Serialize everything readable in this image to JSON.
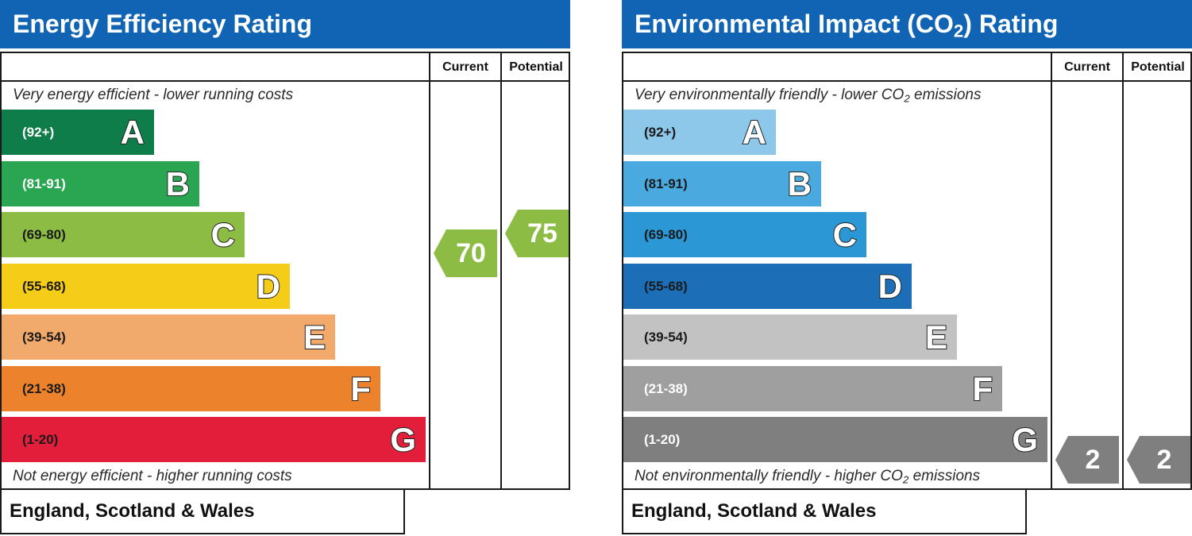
{
  "energy": {
    "title": "Energy Efficiency Rating",
    "col_current": "Current",
    "col_potential": "Potential",
    "top_desc": "Very energy efficient - lower running costs",
    "bottom_desc": "Not energy efficient - higher running costs",
    "footer": "England, Scotland & Wales",
    "bands": [
      {
        "range": "(92+)",
        "letter": "A",
        "color": "#0f7d4a",
        "range_color": "#ffffff"
      },
      {
        "range": "(81-91)",
        "letter": "B",
        "color": "#2aa552",
        "range_color": "#ffffff"
      },
      {
        "range": "(69-80)",
        "letter": "C",
        "color": "#8cbc43",
        "range_color": "#1a1a1a"
      },
      {
        "range": "(55-68)",
        "letter": "D",
        "color": "#f5cd19",
        "range_color": "#1a1a1a"
      },
      {
        "range": "(39-54)",
        "letter": "E",
        "color": "#f2a96c",
        "range_color": "#1a1a1a"
      },
      {
        "range": "(21-38)",
        "letter": "F",
        "color": "#ec822b",
        "range_color": "#1a1a1a"
      },
      {
        "range": "(1-20)",
        "letter": "G",
        "color": "#e21e3a",
        "range_color": "#1a1a1a"
      }
    ],
    "current": {
      "value": "70",
      "color": "#8cbc43"
    },
    "potential": {
      "value": "75",
      "color": "#8cbc43"
    }
  },
  "environment": {
    "title_pre": "Environmental Impact (CO",
    "title_sub": "2",
    "title_post": ") Rating",
    "col_current": "Current",
    "col_potential": "Potential",
    "top_desc_pre": "Very environmentally friendly - lower CO",
    "top_desc_sub": "2",
    "top_desc_post": " emissions",
    "bottom_desc_pre": "Not environmentally friendly - higher CO",
    "bottom_desc_sub": "2",
    "bottom_desc_post": " emissions",
    "footer": "England, Scotland & Wales",
    "bands": [
      {
        "range": "(92+)",
        "letter": "A",
        "color": "#8dc8ea",
        "range_color": "#1a1a1a"
      },
      {
        "range": "(81-91)",
        "letter": "B",
        "color": "#4aa9df",
        "range_color": "#1a1a1a"
      },
      {
        "range": "(69-80)",
        "letter": "C",
        "color": "#2b97d4",
        "range_color": "#1a1a1a"
      },
      {
        "range": "(55-68)",
        "letter": "D",
        "color": "#1c6eb6",
        "range_color": "#1a1a1a"
      },
      {
        "range": "(39-54)",
        "letter": "E",
        "color": "#c2c2c2",
        "range_color": "#1a1a1a"
      },
      {
        "range": "(21-38)",
        "letter": "F",
        "color": "#9f9f9f",
        "range_color": "#ffffff"
      },
      {
        "range": "(1-20)",
        "letter": "G",
        "color": "#7f7f7f",
        "range_color": "#ffffff"
      }
    ],
    "current": {
      "value": "2",
      "color": "#7f7f7f"
    },
    "potential": {
      "value": "2",
      "color": "#7f7f7f"
    }
  }
}
